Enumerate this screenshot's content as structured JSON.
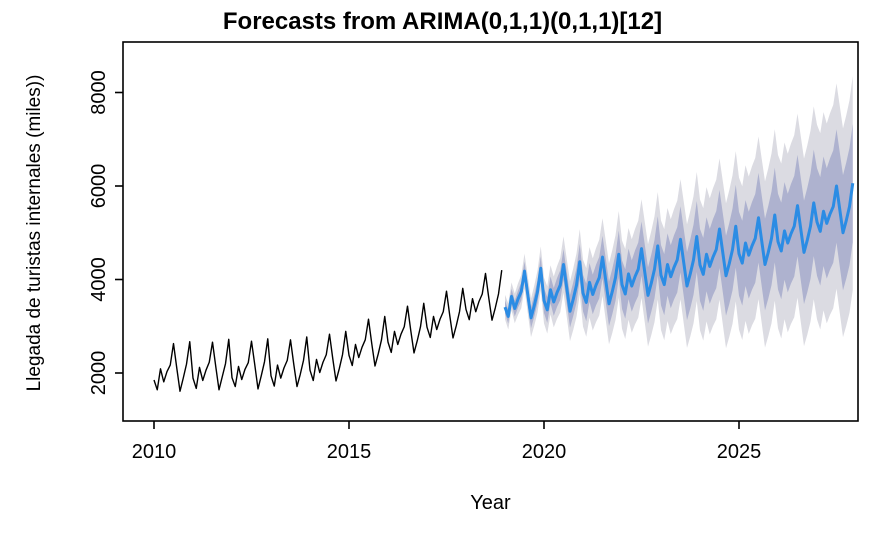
{
  "title": "Forecasts from ARIMA(0,1,1)(0,1,1)[12]",
  "x_axis": {
    "label": "Year",
    "ticks": [
      2010,
      2015,
      2020,
      2025
    ],
    "range": [
      2009.2,
      2028.05
    ]
  },
  "y_axis": {
    "label": "Llegada de turistas internales (miles))",
    "ticks": [
      2000,
      4000,
      6000,
      8000
    ],
    "range": [
      970,
      9080
    ]
  },
  "colors": {
    "history_line": "#000000",
    "forecast_line": "#2b8ce4",
    "interval_80": "#aeb2cf",
    "interval_95": "#dbdbe2",
    "axis": "#000000",
    "background": "#ffffff"
  },
  "chart_data": {
    "type": "line",
    "title": "Forecasts from ARIMA(0,1,1)(0,1,1)[12]",
    "xlabel": "Year",
    "ylabel": "Llegada de turistas internales (miles))",
    "frequency": "monthly",
    "xlim": [
      2009.2,
      2028.05
    ],
    "ylim": [
      970,
      9080
    ],
    "grid": false,
    "legend": "none",
    "history": {
      "name": "observed",
      "start_year": 2010,
      "start_month": 1,
      "values": [
        1850,
        1640,
        2090,
        1810,
        2030,
        2170,
        2630,
        2110,
        1610,
        1890,
        2190,
        2670,
        1890,
        1670,
        2120,
        1840,
        2060,
        2230,
        2660,
        2140,
        1640,
        1920,
        2200,
        2720,
        1900,
        1710,
        2140,
        1860,
        2080,
        2220,
        2680,
        2180,
        1660,
        1940,
        2240,
        2730,
        1940,
        1720,
        2170,
        1890,
        2110,
        2270,
        2710,
        2190,
        1710,
        1970,
        2270,
        2770,
        2060,
        1840,
        2290,
        2010,
        2230,
        2390,
        2830,
        2310,
        1830,
        2090,
        2390,
        2890,
        2380,
        2160,
        2610,
        2330,
        2550,
        2710,
        3150,
        2630,
        2150,
        2410,
        2710,
        3210,
        2660,
        2440,
        2890,
        2610,
        2830,
        2990,
        3430,
        2910,
        2430,
        2690,
        2990,
        3490,
        2980,
        2760,
        3210,
        2930,
        3150,
        3310,
        3750,
        3230,
        2750,
        3010,
        3310,
        3810,
        3360,
        3140,
        3590,
        3310,
        3530,
        3690,
        4130,
        3610,
        3130,
        3390,
        3690,
        4200
      ]
    },
    "forecast": {
      "name": "forecast mean",
      "start_year": 2019,
      "start_month": 1,
      "mean": [
        3410,
        3210,
        3640,
        3380,
        3580,
        3740,
        4180,
        3680,
        3180,
        3440,
        3740,
        4240,
        3550,
        3350,
        3780,
        3520,
        3720,
        3880,
        4320,
        3820,
        3320,
        3580,
        3880,
        4380,
        3710,
        3510,
        3940,
        3680,
        3880,
        4040,
        4480,
        3980,
        3480,
        3740,
        4040,
        4540,
        3890,
        3690,
        4120,
        3860,
        4060,
        4220,
        4660,
        4160,
        3660,
        3920,
        4220,
        4720,
        4090,
        3890,
        4320,
        4060,
        4260,
        4420,
        4860,
        4360,
        3860,
        4120,
        4420,
        4920,
        4310,
        4110,
        4540,
        4280,
        4480,
        4640,
        5080,
        4580,
        4080,
        4340,
        4640,
        5140,
        4550,
        4350,
        4780,
        4520,
        4720,
        4880,
        5320,
        4820,
        4320,
        4580,
        4880,
        5380,
        4810,
        4610,
        5040,
        4780,
        4980,
        5140,
        5580,
        5080,
        4580,
        4840,
        5140,
        5640,
        5230,
        5030,
        5460,
        5200,
        5400,
        5560,
        6000,
        5500,
        5000,
        5260,
        5560,
        6060
      ],
      "intervals": {
        "levels": [
          80,
          95
        ],
        "growth": "linear",
        "width80_start": 140,
        "width80_end": 1265,
        "width95_start": 260,
        "width95_end": 2290
      }
    }
  }
}
